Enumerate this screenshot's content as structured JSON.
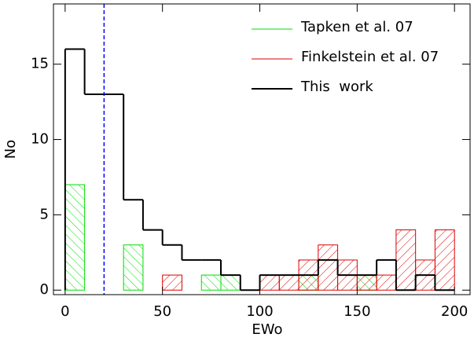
{
  "chart_data": {
    "type": "histogram",
    "xlabel": "EWo",
    "ylabel": "No",
    "bins": [
      0,
      10,
      20,
      30,
      40,
      50,
      60,
      70,
      80,
      90,
      100,
      110,
      120,
      130,
      140,
      150,
      160,
      170,
      180,
      190,
      200
    ],
    "series": [
      {
        "name": "Tapken et al. 07",
        "color": "#00dd00",
        "style": "hatch-back",
        "values": [
          7,
          0,
          0,
          3,
          0,
          0,
          0,
          1,
          1,
          0,
          0,
          0,
          1,
          0,
          0,
          1,
          0,
          0,
          0,
          0
        ]
      },
      {
        "name": "Finkelstein et al. 07",
        "color": "#dd0000",
        "style": "hatch-forward",
        "values": [
          0,
          0,
          0,
          0,
          0,
          1,
          0,
          0,
          0,
          0,
          1,
          1,
          2,
          3,
          2,
          1,
          1,
          4,
          2,
          4
        ]
      },
      {
        "name": "This  work",
        "color": "#000000",
        "style": "step",
        "values": [
          16,
          13,
          13,
          6,
          4,
          3,
          2,
          2,
          1,
          0,
          1,
          1,
          1,
          2,
          1,
          1,
          2,
          0,
          1,
          0
        ]
      }
    ],
    "vline": {
      "x": 20,
      "color": "#0000ff"
    },
    "xlim": [
      -6,
      208
    ],
    "ylim": [
      -0.3,
      19
    ],
    "xticks": [
      0,
      50,
      100,
      150,
      200
    ],
    "yticks": [
      0,
      5,
      10,
      15
    ],
    "legend": "upper right"
  }
}
